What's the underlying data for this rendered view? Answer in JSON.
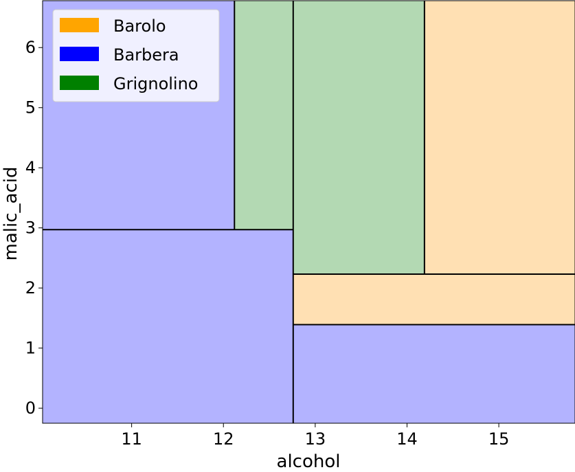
{
  "chart_data": {
    "type": "decision-regions",
    "title": "",
    "xlabel": "alcohol",
    "ylabel": "malic_acid",
    "xlim": [
      10.03,
      15.83
    ],
    "ylim": [
      -0.25,
      6.78
    ],
    "xticks": [
      11,
      12,
      13,
      14,
      15
    ],
    "yticks": [
      0,
      1,
      2,
      3,
      4,
      5,
      6
    ],
    "grid": false,
    "legend_position": "top-left",
    "classes": [
      {
        "name": "Barolo",
        "color": "#ffa500",
        "fill": "#ffe0b3"
      },
      {
        "name": "Barbera",
        "color": "#0000ff",
        "fill": "#b3b3ff"
      },
      {
        "name": "Grignolino",
        "color": "#008000",
        "fill": "#b3d9b3"
      }
    ],
    "regions": [
      {
        "class": "Barbera",
        "x": [
          10.03,
          12.12
        ],
        "y": [
          2.97,
          6.78
        ]
      },
      {
        "class": "Grignolino",
        "x": [
          12.12,
          12.76
        ],
        "y": [
          2.97,
          6.78
        ]
      },
      {
        "class": "Barbera",
        "x": [
          10.03,
          12.76
        ],
        "y": [
          -0.25,
          2.97
        ]
      },
      {
        "class": "Grignolino",
        "x": [
          12.76,
          14.19
        ],
        "y": [
          2.23,
          6.78
        ]
      },
      {
        "class": "Barolo",
        "x": [
          14.19,
          15.83
        ],
        "y": [
          2.23,
          6.78
        ]
      },
      {
        "class": "Barolo",
        "x": [
          12.76,
          15.83
        ],
        "y": [
          1.39,
          2.23
        ]
      },
      {
        "class": "Barbera",
        "x": [
          12.76,
          15.83
        ],
        "y": [
          -0.25,
          1.39
        ]
      }
    ],
    "splits": [
      {
        "orientation": "vertical",
        "x": 12.76,
        "y": [
          -0.25,
          6.78
        ]
      },
      {
        "orientation": "horizontal",
        "y": 2.97,
        "x": [
          10.03,
          12.76
        ]
      },
      {
        "orientation": "vertical",
        "x": 12.12,
        "y": [
          2.97,
          6.78
        ]
      },
      {
        "orientation": "horizontal",
        "y": 1.39,
        "x": [
          12.76,
          15.83
        ]
      },
      {
        "orientation": "horizontal",
        "y": 2.23,
        "x": [
          12.76,
          15.83
        ]
      },
      {
        "orientation": "vertical",
        "x": 14.19,
        "y": [
          2.23,
          6.78
        ]
      }
    ]
  }
}
